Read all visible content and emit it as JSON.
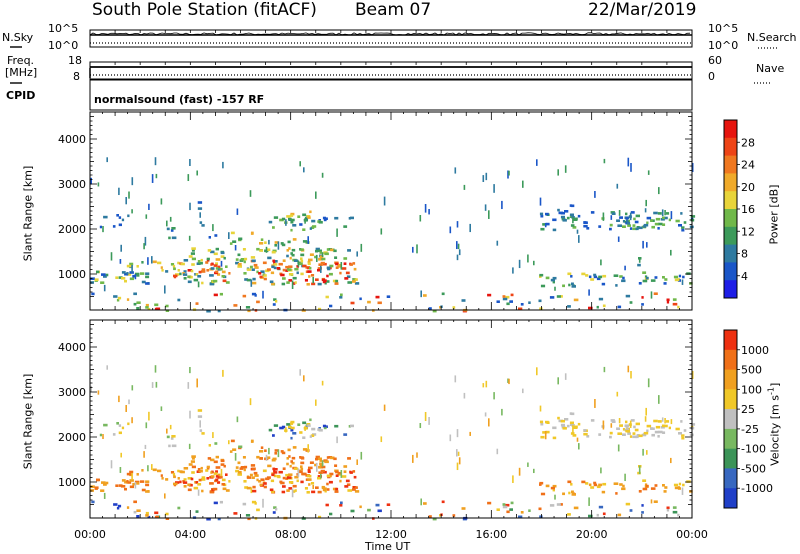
{
  "header": {
    "station": "South Pole Station (fitACF)",
    "beam": "Beam 07",
    "date": "22/Mar/2019"
  },
  "summary_panels": {
    "nsky_label": "N.Sky",
    "nsky_ticks": [
      "10^5",
      "10^0"
    ],
    "nsearch_label": "N.Search",
    "nsearch_ticks": [
      "10^5",
      "10^0"
    ],
    "freq_label_line1": "Freq.",
    "freq_label_line2": "[MHz]",
    "freq_ticks": [
      "18",
      "8"
    ],
    "nave_label": "Nave",
    "nave_ticks": [
      "60",
      "0"
    ],
    "cpid_label": "CPID",
    "cpid_text": "normalsound (fast) -157 RF"
  },
  "chart_data": [
    {
      "type": "heatmap",
      "name": "power-panel",
      "ylabel": "Slant Range [km]",
      "ylim": [
        200,
        4600
      ],
      "yticks": [
        "1000",
        "2000",
        "3000",
        "4000"
      ],
      "x_tick_labels": [
        "00:00",
        "04:00",
        "08:00",
        "12:00",
        "16:00",
        "20:00",
        "00:00"
      ],
      "xlim_hours": [
        0,
        24
      ],
      "colorbar": {
        "label": "Power [dB]",
        "ticks": [
          "4",
          "8",
          "12",
          "16",
          "20",
          "24",
          "28"
        ],
        "colors": [
          "#1e1ee6",
          "#1a56c8",
          "#2e7aa0",
          "#3c9a5a",
          "#70b84a",
          "#e8d43a",
          "#f0aa2a",
          "#f07820",
          "#ee4416",
          "#e6140e"
        ]
      }
    },
    {
      "type": "heatmap",
      "name": "velocity-panel",
      "ylabel": "Slant Range [km]",
      "ylim": [
        200,
        4600
      ],
      "yticks": [
        "1000",
        "2000",
        "3000",
        "4000"
      ],
      "x_tick_labels": [
        "00:00",
        "04:00",
        "08:00",
        "12:00",
        "16:00",
        "20:00",
        "00:00"
      ],
      "xlim_hours": [
        0,
        24
      ],
      "colorbar": {
        "label": "Velocity [m s",
        "label_exp": "-1",
        "label_end": "]",
        "ticks": [
          "1000",
          "500",
          "100",
          "25",
          "-25",
          "-100",
          "-500",
          "-1000"
        ],
        "colors": [
          "#2040c8",
          "#3868c0",
          "#3c9458",
          "#78b860",
          "#c0c0c0",
          "#f0c828",
          "#f0a020",
          "#f07018",
          "#ee3010"
        ]
      }
    }
  ],
  "xaxis": {
    "label": "Time UT"
  }
}
